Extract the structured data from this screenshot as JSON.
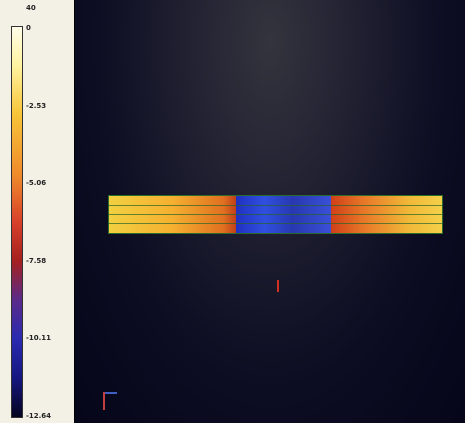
{
  "colorbar": {
    "top_label": "40",
    "ticks": [
      "0",
      "-2.53",
      "-5.06",
      "-7.58",
      "-10.11",
      "-12.64"
    ]
  }
}
